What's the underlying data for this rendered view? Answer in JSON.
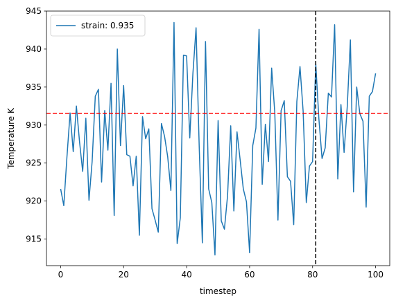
{
  "chart_data": {
    "type": "line",
    "xlabel": "timestep",
    "ylabel": "Temperature K",
    "xlim": [
      -4.5,
      104.5
    ],
    "ylim": [
      911.5,
      945
    ],
    "xticks": [
      0,
      20,
      40,
      60,
      80,
      100
    ],
    "yticks": [
      915,
      920,
      925,
      930,
      935,
      940,
      945
    ],
    "grid": false,
    "legend_position": "top-left",
    "series": [
      {
        "name": "strain: 0.935",
        "color": "#1f77b4",
        "x": [
          0,
          1,
          2,
          3,
          4,
          5,
          6,
          7,
          8,
          9,
          10,
          11,
          12,
          13,
          14,
          15,
          16,
          17,
          18,
          19,
          20,
          21,
          22,
          23,
          24,
          25,
          26,
          27,
          28,
          29,
          30,
          31,
          32,
          33,
          34,
          35,
          36,
          37,
          38,
          39,
          40,
          41,
          42,
          43,
          44,
          45,
          46,
          47,
          48,
          49,
          50,
          51,
          52,
          53,
          54,
          55,
          56,
          57,
          58,
          59,
          60,
          61,
          62,
          63,
          64,
          65,
          66,
          67,
          68,
          69,
          70,
          71,
          72,
          73,
          74,
          75,
          76,
          77,
          78,
          79,
          80,
          81,
          82,
          83,
          84,
          85,
          86,
          87,
          88,
          89,
          90,
          91,
          92,
          93,
          94,
          95,
          96,
          97,
          98,
          99,
          100
        ],
        "y": [
          921.6,
          919.4,
          925.8,
          931.6,
          926.5,
          932.5,
          927.8,
          923.9,
          930.9,
          920.1,
          925.2,
          933.8,
          934.7,
          922.5,
          931.9,
          926.7,
          935.5,
          918.1,
          940.0,
          927.3,
          935.2,
          926.1,
          925.9,
          922.0,
          925.9,
          915.5,
          931.1,
          928.2,
          929.5,
          919.0,
          917.5,
          915.9,
          930.2,
          928.5,
          925.8,
          921.4,
          943.5,
          914.4,
          917.8,
          939.2,
          939.1,
          928.3,
          936.8,
          942.8,
          927.1,
          914.5,
          941.0,
          921.6,
          919.8,
          912.9,
          930.6,
          917.4,
          916.3,
          920.7,
          929.9,
          918.7,
          929.1,
          925.4,
          921.6,
          919.9,
          913.2,
          927.3,
          929.6,
          942.6,
          922.2,
          930.1,
          925.2,
          937.5,
          931.6,
          917.5,
          931.9,
          933.2,
          923.2,
          922.6,
          916.9,
          933.1,
          937.7,
          931.8,
          919.8,
          924.6,
          925.2,
          938.1,
          930.8,
          925.6,
          927.0,
          934.2,
          933.7,
          943.2,
          922.9,
          932.7,
          926.4,
          932.4,
          941.2,
          921.2,
          935.0,
          931.5,
          930.5,
          919.2,
          933.8,
          934.4,
          936.8
        ]
      }
    ],
    "reference_lines": [
      {
        "orientation": "horizontal",
        "value": 931.55,
        "color": "#ff0000",
        "style": "dashed"
      },
      {
        "orientation": "vertical",
        "value": 81,
        "color": "#000000",
        "style": "dashed"
      }
    ]
  }
}
